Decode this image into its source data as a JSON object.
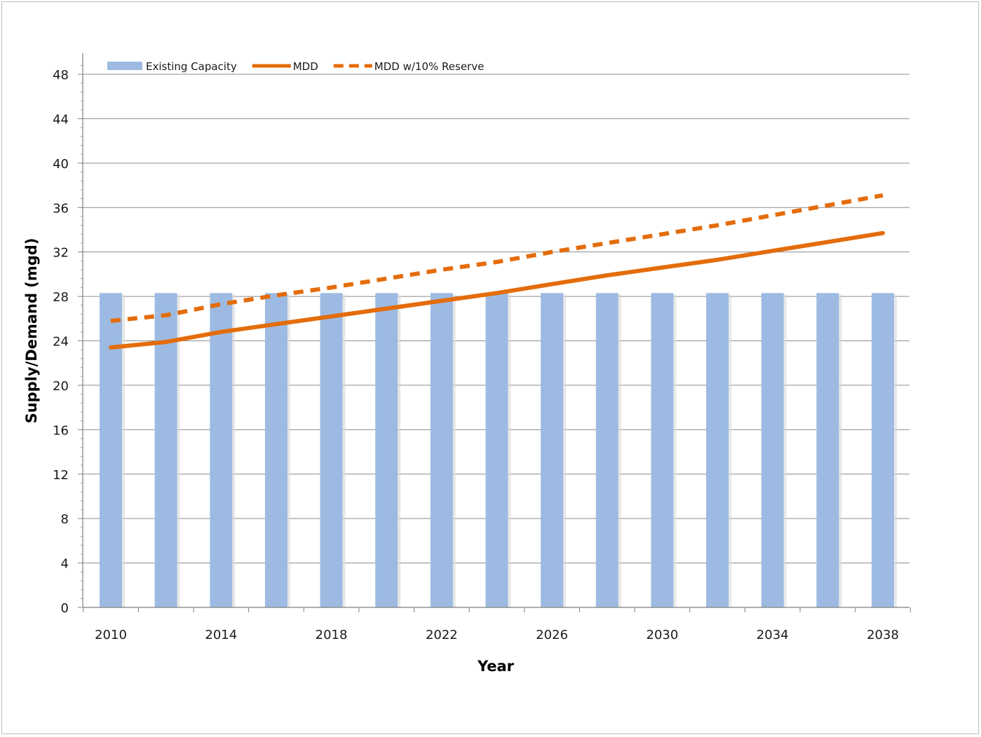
{
  "chart_data": {
    "type": "bar",
    "title": "",
    "xlabel": "Year",
    "ylabel": "Supply/Demand (mgd)",
    "ylim": [
      0,
      48
    ],
    "yticks": [
      0,
      4,
      8,
      12,
      16,
      20,
      24,
      28,
      32,
      36,
      40,
      44,
      48
    ],
    "xlim": [
      2010,
      2038
    ],
    "xtick_labels": [
      "2010",
      "2014",
      "2018",
      "2022",
      "2026",
      "2030",
      "2034",
      "2038"
    ],
    "grid": true,
    "legend_position": "top-left",
    "categories": [
      2010,
      2012,
      2014,
      2016,
      2018,
      2020,
      2022,
      2024,
      2026,
      2028,
      2030,
      2032,
      2034,
      2036,
      2038
    ],
    "series": [
      {
        "name": "Existing Capacity",
        "kind": "bar",
        "color": "#9dbbe2",
        "values": [
          28.3,
          28.3,
          28.3,
          28.3,
          28.3,
          28.3,
          28.3,
          28.3,
          28.3,
          28.3,
          28.3,
          28.3,
          28.3,
          28.3,
          28.3
        ]
      },
      {
        "name": "MDD",
        "kind": "line",
        "style": "solid",
        "color": "#e46c0a",
        "values": [
          23.4,
          23.9,
          24.8,
          25.5,
          26.2,
          26.9,
          27.6,
          28.3,
          29.1,
          29.9,
          30.6,
          31.3,
          32.1,
          32.9,
          33.7
        ]
      },
      {
        "name": "MDD w/10% Reserve",
        "kind": "line",
        "style": "dashed",
        "color": "#e46c0a",
        "values": [
          25.8,
          26.3,
          27.3,
          28.1,
          28.8,
          29.6,
          30.4,
          31.1,
          32.0,
          32.8,
          33.6,
          34.4,
          35.3,
          36.2,
          37.1
        ]
      }
    ]
  }
}
